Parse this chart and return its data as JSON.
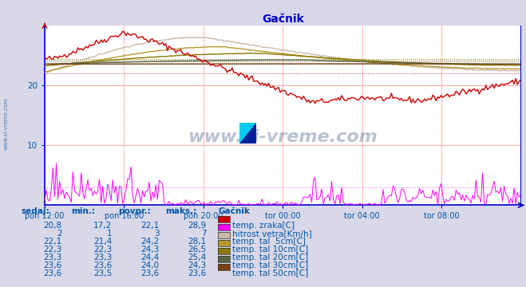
{
  "title": "Gačnik",
  "title_color": "#0000cc",
  "bg_color": "#d8d8e8",
  "plot_bg_color": "#ffffff",
  "axis_color": "#0000cc",
  "grid_color": "#ffaaaa",
  "grid_color_minor": "#ffdddd",
  "xtick_labels": [
    "pon 12:00",
    "pon 16:00",
    "pon 20:00",
    "tor 00:00",
    "tor 04:00",
    "tor 08:00"
  ],
  "xtick_positions": [
    0,
    4,
    8,
    12,
    16,
    20
  ],
  "n_points": 288,
  "series": {
    "temp_zraka": {
      "color": "#cc0000",
      "min": 17.2,
      "avg": 22.1,
      "max": 28.9,
      "current": 20.8,
      "label": "temp. zraka[C]"
    },
    "hitrost_vetra": {
      "color": "#ff00ff",
      "min": 1,
      "avg": 3,
      "max": 7,
      "current": 2,
      "label": "hitrost vetra[Km/h]"
    },
    "temp_tal_5cm": {
      "color": "#c8b8a8",
      "min": 21.4,
      "avg": 24.2,
      "max": 28.1,
      "current": 22.1,
      "label": "temp. tal  5cm[C]"
    },
    "temp_tal_10cm": {
      "color": "#b89830",
      "min": 22.3,
      "avg": 24.3,
      "max": 26.5,
      "current": 22.3,
      "label": "temp. tal 10cm[C]"
    },
    "temp_tal_20cm": {
      "color": "#887700",
      "min": 23.3,
      "avg": 24.4,
      "max": 25.4,
      "current": 23.3,
      "label": "temp. tal 20cm[C]"
    },
    "temp_tal_30cm": {
      "color": "#556644",
      "min": 23.6,
      "avg": 24.0,
      "max": 24.3,
      "current": 23.6,
      "label": "temp. tal 30cm[C]"
    },
    "temp_tal_50cm": {
      "color": "#7a4010",
      "min": 23.5,
      "avg": 23.6,
      "max": 23.6,
      "current": 23.6,
      "label": "temp. tal 50cm[C]"
    }
  },
  "table_headers": [
    "sedaj:",
    "min.:",
    "povpr.:",
    "maks.:"
  ],
  "table_color": "#0055aa",
  "watermark": "www.si-vreme.com",
  "watermark_color": "#1a3a6a",
  "left_text": "www.si-vreme.com"
}
